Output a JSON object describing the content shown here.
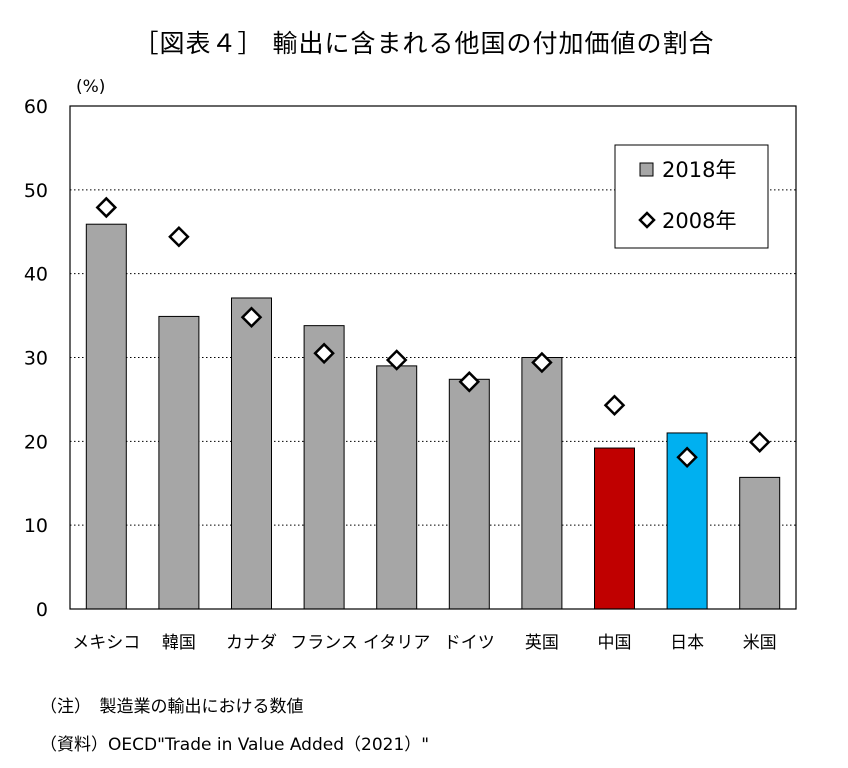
{
  "title": "［図表４］ 輸出に含まれる他国の付加価値の割合",
  "notes": {
    "note": "（注）　製造業の輸出における数値",
    "source": "（資料）OECD\"Trade in Value Added（2021）\""
  },
  "chart_data": {
    "type": "bar",
    "ylabel": "(%)",
    "ylim": [
      0,
      60
    ],
    "yticks": [
      0,
      10,
      20,
      30,
      40,
      50,
      60
    ],
    "grid": true,
    "legend_position": "top-right",
    "categories": [
      "メキシコ",
      "韓国",
      "カナダ",
      "フランス",
      "イタリア",
      "ドイツ",
      "英国",
      "中国",
      "日本",
      "米国"
    ],
    "series": [
      {
        "name": "2018年",
        "type": "bar",
        "values": [
          45.9,
          34.9,
          37.1,
          33.8,
          29.0,
          27.4,
          30.0,
          19.2,
          21.0,
          15.7
        ],
        "color": "#a6a6a6",
        "highlight_colors": {
          "中国": "#c00000",
          "日本": "#00b0f0"
        }
      },
      {
        "name": "2008年",
        "type": "marker",
        "marker": "diamond",
        "values": [
          47.9,
          44.4,
          34.8,
          30.5,
          29.7,
          27.1,
          29.4,
          24.3,
          18.1,
          19.9
        ]
      }
    ]
  }
}
